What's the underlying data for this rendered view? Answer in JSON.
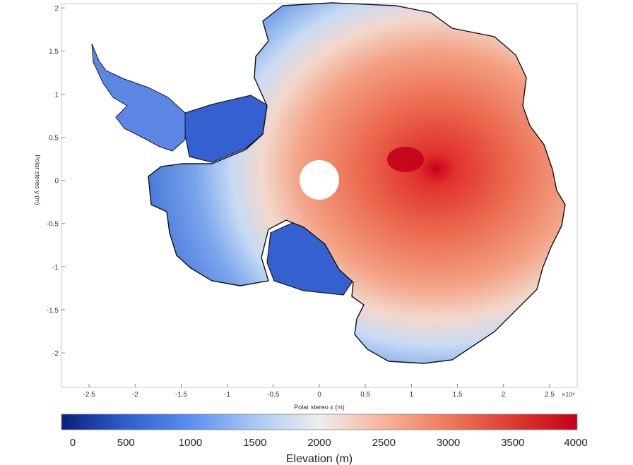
{
  "chart_data": {
    "type": "heatmap",
    "title": "",
    "xlabel": "Polar stereo x (m)",
    "ylabel": "Polar stereo y (m)",
    "x_exponent": "×10⁶",
    "xlim": [
      -2.8,
      2.8
    ],
    "ylim": [
      -2.4,
      2.05
    ],
    "xticks": [
      -2.5,
      -2,
      -1.5,
      -1,
      -0.5,
      0,
      0.5,
      1,
      1.5,
      2,
      2.5
    ],
    "yticks": [
      2,
      1.5,
      1,
      0.5,
      0,
      -0.5,
      -1,
      -1.5,
      -2
    ],
    "colorbar": {
      "label": "Elevation (m)",
      "min": 0,
      "max": 4000,
      "ticks": [
        0,
        500,
        1000,
        1500,
        2000,
        2500,
        3000,
        3500,
        4000
      ],
      "colors": [
        "#0b1f7a",
        "#2f5fd0",
        "#5b8ef0",
        "#a9c8f5",
        "#eeeeee",
        "#f7b39a",
        "#ee7a5d",
        "#de3b2f",
        "#c4001a"
      ]
    },
    "features": {
      "pole_hole_center": [
        0,
        0
      ],
      "elevation_maximum_near": [
        0.85,
        0.25
      ]
    }
  }
}
